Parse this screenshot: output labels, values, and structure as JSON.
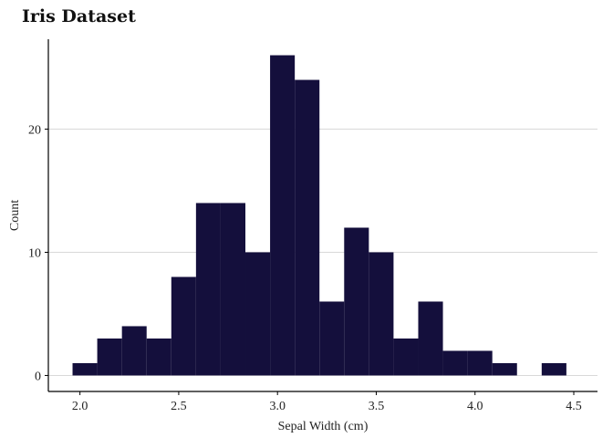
{
  "chart_data": {
    "type": "bar",
    "title": "Iris Dataset",
    "xlabel": "Sepal Width (cm)",
    "ylabel": "Count",
    "xlim": [
      1.84,
      4.62
    ],
    "ylim": [
      -1.3,
      27.3
    ],
    "xticks": [
      2.0,
      2.5,
      3.0,
      3.5,
      4.0,
      4.5
    ],
    "xtick_labels": [
      "2.0",
      "2.5",
      "3.0",
      "3.5",
      "4.0",
      "4.5"
    ],
    "yticks": [
      0,
      10,
      20
    ],
    "ytick_labels": [
      "0",
      "10",
      "20"
    ],
    "grid": "horizontal",
    "bar_color": "#140f3c",
    "bins": [
      {
        "x0": 1.9625,
        "x1": 2.0875,
        "count": 1
      },
      {
        "x0": 2.0875,
        "x1": 2.2125,
        "count": 3
      },
      {
        "x0": 2.2125,
        "x1": 2.3375,
        "count": 4
      },
      {
        "x0": 2.3375,
        "x1": 2.4625,
        "count": 3
      },
      {
        "x0": 2.4625,
        "x1": 2.5875,
        "count": 8
      },
      {
        "x0": 2.5875,
        "x1": 2.7125,
        "count": 14
      },
      {
        "x0": 2.7125,
        "x1": 2.8375,
        "count": 14
      },
      {
        "x0": 2.8375,
        "x1": 2.9625,
        "count": 10
      },
      {
        "x0": 2.9625,
        "x1": 3.0875,
        "count": 26
      },
      {
        "x0": 3.0875,
        "x1": 3.2125,
        "count": 24
      },
      {
        "x0": 3.2125,
        "x1": 3.3375,
        "count": 6
      },
      {
        "x0": 3.3375,
        "x1": 3.4625,
        "count": 12
      },
      {
        "x0": 3.4625,
        "x1": 3.5875,
        "count": 10
      },
      {
        "x0": 3.5875,
        "x1": 3.7125,
        "count": 3
      },
      {
        "x0": 3.7125,
        "x1": 3.8375,
        "count": 6
      },
      {
        "x0": 3.8375,
        "x1": 3.9625,
        "count": 2
      },
      {
        "x0": 3.9625,
        "x1": 4.0875,
        "count": 2
      },
      {
        "x0": 4.0875,
        "x1": 4.2125,
        "count": 1
      },
      {
        "x0": 4.2125,
        "x1": 4.3375,
        "count": 0
      },
      {
        "x0": 4.3375,
        "x1": 4.4625,
        "count": 1
      }
    ]
  }
}
